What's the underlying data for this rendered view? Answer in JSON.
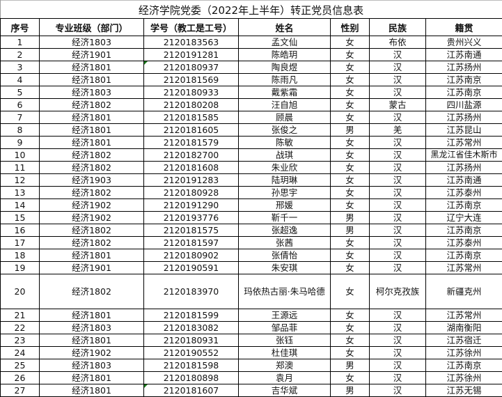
{
  "title": "经济学院党委（2022年上半年）转正党员信息表",
  "headers": [
    "序号",
    "专业班级（部门）",
    "学号（教工是工号）",
    "姓名",
    "性别",
    "民族",
    "籍贯"
  ],
  "rows": [
    [
      "1",
      "经济1803",
      "2120183563",
      "孟文仙",
      "女",
      "布依",
      "贵州兴义"
    ],
    [
      "2",
      "经济1901",
      "2120191281",
      "陈皓玥",
      "女",
      "汉",
      "江苏南通"
    ],
    [
      "3",
      "经济1801",
      "2120180937",
      "陶良煜",
      "女",
      "汉",
      "江苏扬州"
    ],
    [
      "4",
      "经济1801",
      "2120181569",
      "陈雨凡",
      "女",
      "汉",
      "江苏南京"
    ],
    [
      "5",
      "经济1803",
      "2120180933",
      "戴紫霜",
      "女",
      "汉",
      "江苏南京"
    ],
    [
      "6",
      "经济1802",
      "2120180208",
      "汪自旭",
      "女",
      "蒙古",
      "四川盐源"
    ],
    [
      "7",
      "经济1801",
      "2120181585",
      "顾晨",
      "女",
      "汉",
      "江苏扬州"
    ],
    [
      "8",
      "经济1801",
      "2120181605",
      "张俊之",
      "男",
      "羌",
      "江苏昆山"
    ],
    [
      "9",
      "经济1801",
      "2120181579",
      "陈敏",
      "女",
      "汉",
      "江苏常州"
    ],
    [
      "10",
      "经济1802",
      "2120182700",
      "战琪",
      "女",
      "汉",
      "黑龙江省佳木斯市"
    ],
    [
      "11",
      "经济1802",
      "2120181608",
      "朱业欣",
      "女",
      "汉",
      "江苏扬州"
    ],
    [
      "12",
      "经济1903",
      "2120191283",
      "陆玥琳",
      "女",
      "汉",
      "江苏南通"
    ],
    [
      "13",
      "经济1802",
      "2120180928",
      "孙思宇",
      "女",
      "汉",
      "江苏泰州"
    ],
    [
      "14",
      "经济1902",
      "2120191290",
      "邢媛",
      "女",
      "汉",
      "江苏南京"
    ],
    [
      "15",
      "经济1902",
      "2120193776",
      "靳千一",
      "男",
      "汉",
      "辽宁大连"
    ],
    [
      "16",
      "经济1802",
      "2120181575",
      "张超逸",
      "男",
      "汉",
      "江苏南京"
    ],
    [
      "17",
      "经济1802",
      "2120181597",
      "张茜",
      "女",
      "汉",
      "江苏泰州"
    ],
    [
      "18",
      "经济1801",
      "2120180902",
      "张倩怡",
      "女",
      "汉",
      "江苏南京"
    ],
    [
      "19",
      "经济1901",
      "2120190591",
      "朱安琪",
      "女",
      "汉",
      "江苏常州"
    ],
    [
      "20",
      "经济1802",
      "2120183970",
      "玛依热古丽·朱马哈德",
      "女",
      "柯尔克孜族",
      "新疆克州"
    ],
    [
      "21",
      "经济1801",
      "2120181599",
      "王源远",
      "女",
      "汉",
      "江苏常州"
    ],
    [
      "22",
      "经济1803",
      "2120183082",
      "邹品菲",
      "女",
      "汉",
      "湖南衡阳"
    ],
    [
      "23",
      "经济1801",
      "2120180931",
      "张钰",
      "女",
      "汉",
      "江苏宿迁"
    ],
    [
      "24",
      "经济1902",
      "2120190552",
      "杜佳琪",
      "女",
      "汉",
      "江苏徐州"
    ],
    [
      "25",
      "经济1803",
      "2120181598",
      "郑澳",
      "男",
      "汉",
      "江苏南京"
    ],
    [
      "26",
      "经济1801",
      "2120180898",
      "袁月",
      "女",
      "汉",
      "江苏徐州"
    ],
    [
      "27",
      "经济1801",
      "2120181607",
      "吉华斌",
      "男",
      "汉",
      "江苏无锡"
    ]
  ],
  "colors": {
    "grid": "#000000",
    "note_marker": "#1a7a1a"
  }
}
